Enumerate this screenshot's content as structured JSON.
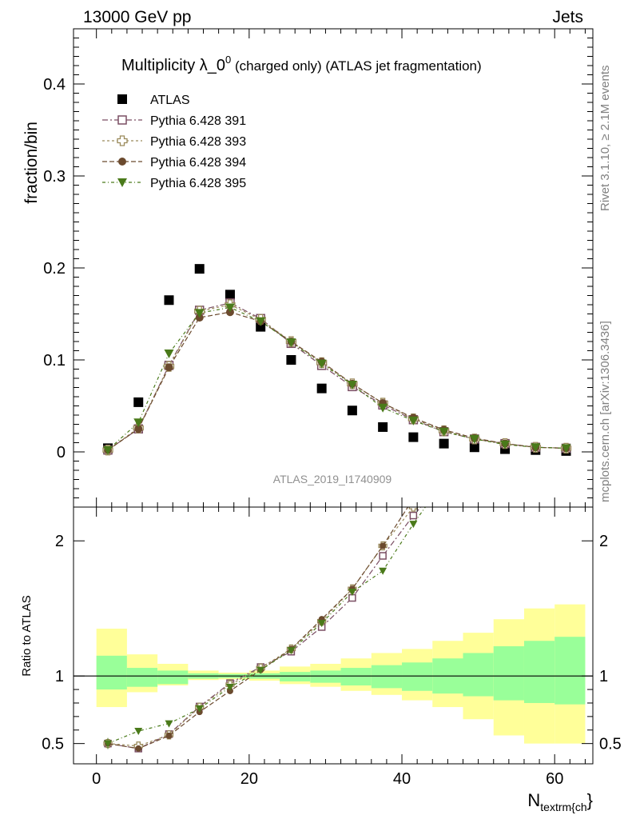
{
  "header": {
    "left_label": "13000 GeV pp",
    "right_label": "Jets"
  },
  "side_labels": {
    "rivet": "Rivet 3.1.10, ≥ 2.1M events",
    "source": "mcplots.cern.ch [arXiv:1306.3436]"
  },
  "chart_data": {
    "type": "scatter",
    "title": {
      "main": "Multiplicity λ_0",
      "superscript": "0",
      "suffix": " (charged only) (ATLAS jet fragmentation)"
    },
    "analysis_label": "ATLAS_2019_I1740909",
    "xlabel": {
      "main": "N",
      "sub": "textrm{ch",
      "tail": "}"
    },
    "ylabel": "fraction/bin",
    "ratio_ylabel": "Ratio to ATLAS",
    "xlim": [
      -3,
      65
    ],
    "ylim": [
      -0.06,
      0.46
    ],
    "ratio_ylim": [
      0.35,
      2.25
    ],
    "x_ticks": [
      "0",
      "20",
      "40",
      "60"
    ],
    "y_ticks": [
      "0",
      "0.1",
      "0.2",
      "0.3",
      "0.4"
    ],
    "ratio_y_ticks": [
      "0.5",
      "1",
      "2"
    ],
    "legend_position": "top-left",
    "x": [
      1.5,
      5.5,
      9.5,
      13.5,
      17.5,
      21.5,
      25.5,
      29.5,
      33.5,
      37.5,
      41.5,
      45.5,
      49.5,
      53.5,
      57.5,
      61.5
    ],
    "bin_edges": [
      0,
      4,
      8,
      12,
      16,
      20,
      24,
      28,
      32,
      36,
      40,
      44,
      48,
      52,
      56,
      60,
      64
    ],
    "series": [
      {
        "name": "ATLAS",
        "marker": "square-filled",
        "color": "#000000",
        "values": [
          0.004,
          0.054,
          0.165,
          0.199,
          0.171,
          0.136,
          0.1,
          0.069,
          0.045,
          0.027,
          0.016,
          0.009,
          0.005,
          0.003,
          0.002,
          0.001
        ]
      },
      {
        "name": "Pythia 6.428 391",
        "marker": "square-open",
        "color": "#7a4e63",
        "values": [
          0.002,
          0.025,
          0.094,
          0.154,
          0.162,
          0.145,
          0.118,
          0.094,
          0.071,
          0.051,
          0.035,
          0.022,
          0.014,
          0.009,
          0.005,
          0.004
        ]
      },
      {
        "name": "Pythia 6.428 393",
        "marker": "cross-open",
        "color": "#9a8a5a",
        "values": [
          0.002,
          0.026,
          0.093,
          0.153,
          0.16,
          0.144,
          0.12,
          0.097,
          0.074,
          0.053,
          0.036,
          0.023,
          0.014,
          0.009,
          0.005,
          0.004
        ]
      },
      {
        "name": "Pythia 6.428 394",
        "marker": "circle-filled",
        "color": "#6b4a2e",
        "values": [
          0.002,
          0.025,
          0.092,
          0.146,
          0.152,
          0.142,
          0.12,
          0.098,
          0.074,
          0.053,
          0.037,
          0.024,
          0.015,
          0.009,
          0.005,
          0.004
        ]
      },
      {
        "name": "Pythia 6.428 395",
        "marker": "triangle-down-filled",
        "color": "#4a7a1a",
        "values": [
          0.002,
          0.032,
          0.107,
          0.151,
          0.157,
          0.142,
          0.119,
          0.096,
          0.073,
          0.048,
          0.034,
          0.022,
          0.014,
          0.008,
          0.005,
          0.004
        ]
      }
    ],
    "ratio_band_inner": [
      [
        0.9,
        1.15
      ],
      [
        0.92,
        1.06
      ],
      [
        0.94,
        1.04
      ],
      [
        0.98,
        1.02
      ],
      [
        0.985,
        1.015
      ],
      [
        0.98,
        1.02
      ],
      [
        0.96,
        1.03
      ],
      [
        0.95,
        1.04
      ],
      [
        0.93,
        1.06
      ],
      [
        0.91,
        1.08
      ],
      [
        0.89,
        1.1
      ],
      [
        0.87,
        1.13
      ],
      [
        0.85,
        1.17
      ],
      [
        0.82,
        1.22
      ],
      [
        0.8,
        1.26
      ],
      [
        0.79,
        1.29
      ]
    ],
    "ratio_band_outer": [
      [
        0.77,
        1.35
      ],
      [
        0.88,
        1.16
      ],
      [
        0.93,
        1.09
      ],
      [
        0.97,
        1.04
      ],
      [
        0.975,
        1.025
      ],
      [
        0.965,
        1.04
      ],
      [
        0.94,
        1.07
      ],
      [
        0.92,
        1.09
      ],
      [
        0.89,
        1.13
      ],
      [
        0.86,
        1.17
      ],
      [
        0.82,
        1.2
      ],
      [
        0.77,
        1.26
      ],
      [
        0.68,
        1.32
      ],
      [
        0.56,
        1.42
      ],
      [
        0.5,
        1.5
      ],
      [
        0.5,
        1.53
      ]
    ],
    "ratio_error_lo": [
      0.08,
      0.02,
      0.0,
      0.0,
      0.0,
      0.0,
      0.0,
      0.0,
      0.0,
      0.0,
      0.0,
      0.0,
      0.0,
      0.0,
      0.0,
      0.0
    ]
  }
}
